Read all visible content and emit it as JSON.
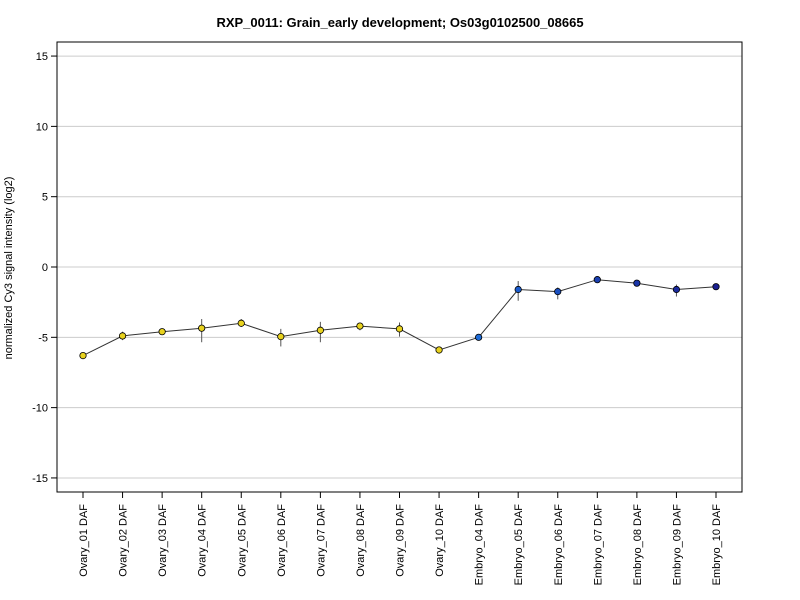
{
  "chart_data": {
    "type": "line",
    "title": "RXP_0011: Grain_early development; Os03g0102500_08665",
    "xlabel": "",
    "ylabel": "normalized Cy3 signal intensity (log2)",
    "ylim": [
      -16,
      16
    ],
    "yticks": [
      -15,
      -10,
      -5,
      0,
      5,
      10,
      15
    ],
    "grid": true,
    "categories": [
      "Ovary_01 DAF",
      "Ovary_02 DAF",
      "Ovary_03 DAF",
      "Ovary_04 DAF",
      "Ovary_05 DAF",
      "Ovary_06 DAF",
      "Ovary_07 DAF",
      "Ovary_08 DAF",
      "Ovary_09 DAF",
      "Ovary_10 DAF",
      "Embryo_04 DAF",
      "Embryo_05 DAF",
      "Embryo_06 DAF",
      "Embryo_07 DAF",
      "Embryo_08 DAF",
      "Embryo_09 DAF",
      "Embryo_10 DAF"
    ],
    "values": [
      -6.3,
      -4.9,
      -4.6,
      -4.35,
      -4.0,
      -4.95,
      -4.5,
      -4.2,
      -4.4,
      -5.9,
      -5.0,
      -1.6,
      -1.75,
      -0.9,
      -1.15,
      -1.6,
      -1.4
    ],
    "err_low": [
      -6.4,
      -5.2,
      -4.8,
      -5.35,
      -4.25,
      -5.65,
      -5.35,
      -4.5,
      -4.95,
      -6.0,
      -5.1,
      -2.4,
      -2.3,
      -1.0,
      -1.35,
      -2.1,
      -1.5
    ],
    "err_high": [
      -6.1,
      -4.6,
      -4.4,
      -3.7,
      -3.7,
      -4.4,
      -3.9,
      -3.95,
      -3.95,
      -5.75,
      -4.95,
      -1.0,
      -1.45,
      -0.75,
      -0.95,
      -1.25,
      -1.3
    ],
    "point_colors": [
      "#e8d21e",
      "#e8d21e",
      "#e8d21e",
      "#e8d21e",
      "#e8d21e",
      "#e8d21e",
      "#e8d21e",
      "#e8d21e",
      "#e8d21e",
      "#e8d21e",
      "#1e6cd8",
      "#1a5ccd",
      "#1a4fc0",
      "#1a3fb0",
      "#1a35a8",
      "#1a2a9c",
      "#1a2090"
    ]
  }
}
